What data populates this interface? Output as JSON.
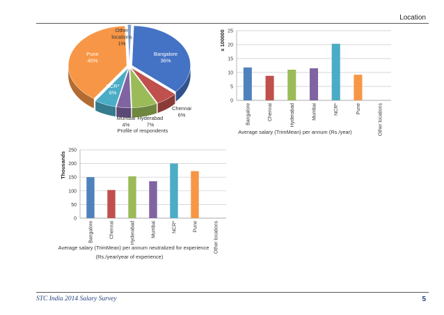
{
  "header": {
    "title": "Location"
  },
  "footer": {
    "left": "STC India 2014 Salary Survey",
    "page": "5"
  },
  "chart_data": [
    {
      "type": "pie",
      "title": "Profile of respondents",
      "categories": [
        "Bangalore",
        "Chennai",
        "Hyderabad",
        "Mumbai",
        "NCR*",
        "Pune",
        "Other locations"
      ],
      "labels": [
        "Bangalore",
        "Chennai",
        "Hyderabad",
        "Mumbai",
        "NCR*",
        "Pune",
        "Other\nlocations"
      ],
      "values": [
        36,
        6,
        7,
        4,
        6,
        40,
        1
      ],
      "value_labels": [
        "36%",
        "6%",
        "7%",
        "4%",
        "6%",
        "40%",
        "1%"
      ],
      "colors": [
        "#4472c4",
        "#c0504d",
        "#9bbb59",
        "#8064a2",
        "#4bacc6",
        "#f79646",
        "#7f9fcf"
      ],
      "style": "3d-exploded"
    },
    {
      "type": "bar",
      "title": "",
      "xlabel": "Average salary (TrimMean) per annum (Rs./year)",
      "ylabel": "x 100000",
      "categories": [
        "Bangalore",
        "Chennai",
        "Hyderabad",
        "Mumbai",
        "NCR*",
        "Pune",
        "Other locations"
      ],
      "values": [
        11.8,
        8.8,
        11,
        11.5,
        20.3,
        9.2,
        0
      ],
      "colors": [
        "#4f81bd",
        "#c0504d",
        "#9bbb59",
        "#8064a2",
        "#4bacc6",
        "#f79646",
        "#4f81bd"
      ],
      "ylim": [
        0,
        25
      ],
      "yticks": [
        0,
        5,
        10,
        15,
        20,
        25
      ],
      "grid": true
    },
    {
      "type": "bar",
      "title": "",
      "xlabel": "Average salary (TrimMean) per annum neutralized for experience",
      "xlabel2": "(Rs./year/year of experience)",
      "ylabel": "Thousands",
      "categories": [
        "Bangalore",
        "Chennai",
        "Hyderabad",
        "Mumbai",
        "NCR*",
        "Pune",
        "Other locations"
      ],
      "values": [
        150,
        103,
        153,
        135,
        200,
        172,
        0
      ],
      "colors": [
        "#4f81bd",
        "#c0504d",
        "#9bbb59",
        "#8064a2",
        "#4bacc6",
        "#f79646",
        "#4f81bd"
      ],
      "ylim": [
        0,
        250
      ],
      "yticks": [
        0,
        50,
        100,
        150,
        200,
        250
      ],
      "grid": true
    }
  ]
}
